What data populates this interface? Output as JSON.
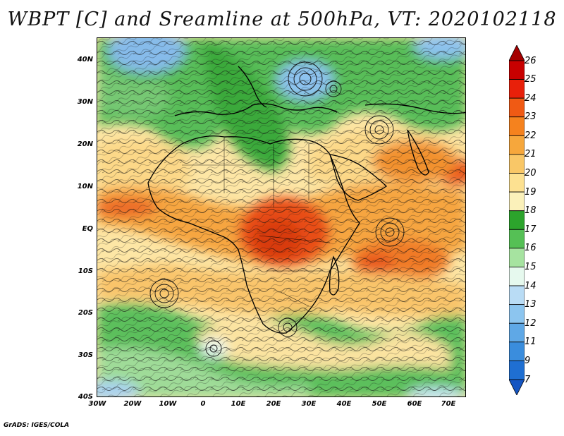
{
  "title": "WBPT [C] and Sreamline at 500hPa, VT: 2020102118",
  "footer": "GrADS: IGES/COLA",
  "map": {
    "lat_labels": [
      "40N",
      "30N",
      "20N",
      "10N",
      "EQ",
      "10S",
      "20S",
      "30S",
      "40S"
    ],
    "lon_labels": [
      "30W",
      "20W",
      "10W",
      "0",
      "10E",
      "20E",
      "30E",
      "40E",
      "50E",
      "60E",
      "70E"
    ],
    "extent": {
      "lon": [
        -30,
        75
      ],
      "lat": [
        -40,
        45
      ]
    }
  },
  "colorbar": {
    "labels": [
      "26",
      "25",
      "24",
      "23",
      "22",
      "21",
      "20",
      "19",
      "18",
      "17",
      "16",
      "15",
      "14",
      "13",
      "12",
      "11",
      "9",
      "7"
    ],
    "colors": [
      "#a50000",
      "#c80000",
      "#e8200a",
      "#f05a14",
      "#f5821e",
      "#f6a73c",
      "#f9c767",
      "#fde191",
      "#fbf1ba",
      "#2ca42c",
      "#55c055",
      "#a6e3a0",
      "#e6f9ee",
      "#b9dcf5",
      "#8cc5ef",
      "#5fa8e6",
      "#3a8ddd",
      "#1f6fd2",
      "#1555c2"
    ]
  },
  "legend_colors": {
    "green": "#4db94d",
    "cream": "#fde9aa",
    "orange": "#f4a33a",
    "red_orange": "#eb5a1e",
    "blue": "#8fc0ec"
  }
}
